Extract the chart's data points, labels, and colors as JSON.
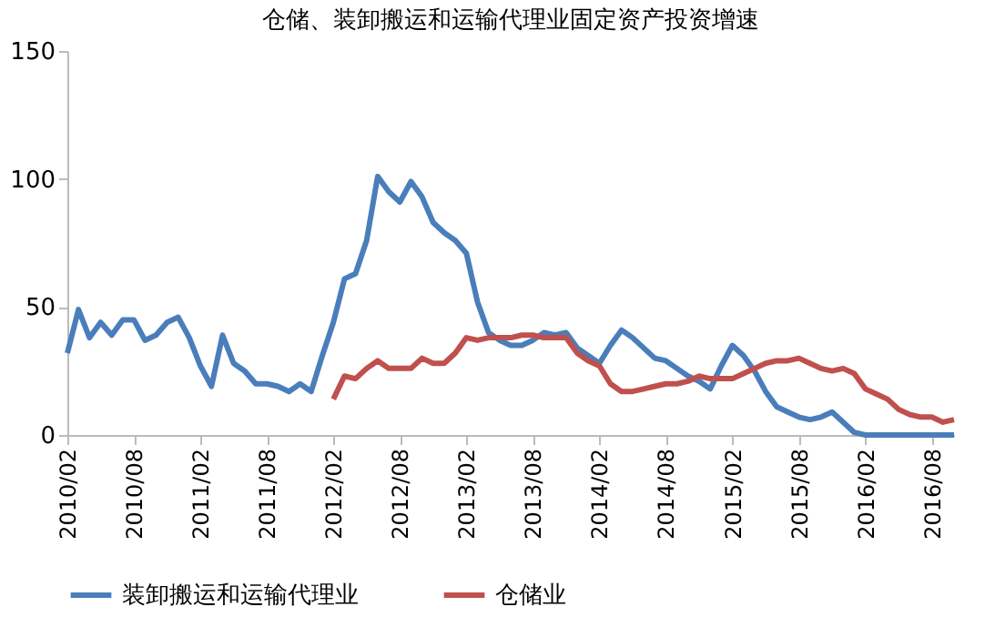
{
  "chart_data": {
    "type": "line",
    "title": "仓储、装卸搬运和运输代理业固定资产投资增速",
    "categories": [
      "2010/02",
      null,
      null,
      null,
      null,
      null,
      "2010/08",
      null,
      null,
      null,
      null,
      null,
      "2011/02",
      null,
      null,
      null,
      null,
      null,
      "2011/08",
      null,
      null,
      null,
      null,
      null,
      "2012/02",
      null,
      null,
      null,
      null,
      null,
      "2012/08",
      null,
      null,
      null,
      null,
      null,
      "2013/02",
      null,
      null,
      null,
      null,
      null,
      "2013/08",
      null,
      null,
      null,
      null,
      null,
      "2014/02",
      null,
      null,
      null,
      null,
      null,
      "2014/08",
      null,
      null,
      null,
      null,
      null,
      "2015/02",
      null,
      null,
      null,
      null,
      null,
      "2015/08",
      null,
      null,
      null,
      null,
      null,
      "2016/02",
      null,
      null,
      null,
      null,
      null,
      "2016/08",
      null,
      null
    ],
    "series": [
      {
        "name": "装卸搬运和运输代理业",
        "color": "#4a7ebb",
        "values": [
          32,
          49,
          38,
          44,
          39,
          45,
          45,
          37,
          39,
          44,
          46,
          38,
          27,
          19,
          39,
          28,
          25,
          20,
          20,
          19,
          17,
          20,
          17,
          31,
          44,
          61,
          63,
          76,
          101,
          95,
          91,
          99,
          93,
          83,
          79,
          76,
          71,
          52,
          40,
          37,
          35,
          35,
          37,
          40,
          39,
          40,
          34,
          31,
          28,
          35,
          41,
          38,
          34,
          30,
          29,
          26,
          23,
          21,
          18,
          27,
          35,
          31,
          25,
          17,
          11,
          9,
          7,
          6,
          7,
          9,
          5,
          1,
          0,
          0,
          0,
          0,
          0,
          0,
          0,
          0,
          0
        ]
      },
      {
        "name": "仓储业",
        "color": "#c0504d",
        "values": [
          null,
          null,
          null,
          null,
          null,
          null,
          null,
          null,
          null,
          null,
          null,
          null,
          null,
          null,
          null,
          null,
          null,
          null,
          null,
          null,
          null,
          null,
          null,
          null,
          14,
          23,
          22,
          26,
          29,
          26,
          26,
          26,
          30,
          28,
          28,
          32,
          38,
          37,
          38,
          38,
          38,
          39,
          39,
          38,
          38,
          38,
          32,
          29,
          27,
          20,
          17,
          17,
          18,
          19,
          20,
          20,
          21,
          23,
          22,
          22,
          22,
          24,
          26,
          28,
          29,
          29,
          30,
          28,
          26,
          25,
          26,
          24,
          18,
          16,
          14,
          10,
          8,
          7,
          7,
          5,
          6
        ]
      }
    ],
    "ylim": [
      0,
      150
    ],
    "yticks": [
      0,
      50,
      100,
      150
    ],
    "grid": false,
    "legend": "bottom"
  }
}
